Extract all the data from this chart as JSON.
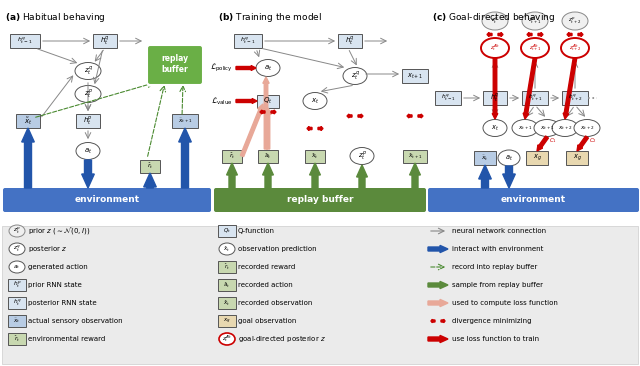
{
  "title_a": "(a) Habitual behaving",
  "title_b": "(b) Training the model",
  "title_c": "(c) Goal-directed behaving",
  "env_color": "#4472C4",
  "replay_color": "#5B8A3C",
  "replay_box_color": "#6AAF46",
  "box_fill": "#D8E4F0",
  "box_fill_light": "#E8F0F8",
  "circle_fill": "white",
  "red_color": "#CC0000",
  "gray_arrow": "#888888",
  "blue_arrow": "#2255AA",
  "green_arrow": "#4A8A30",
  "pink_arrow": "#E8A898",
  "fig_bg": "white",
  "legend_bg": "#EBEBEB"
}
